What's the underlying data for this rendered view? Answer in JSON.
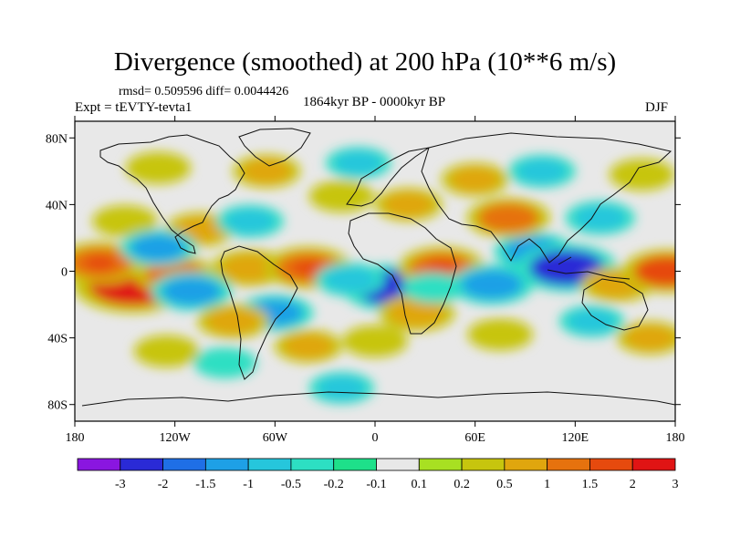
{
  "header": {
    "title": "Divergence (smoothed) at 200 hPa (10**6 m/s)",
    "stats": "rmsd= 0.509596 diff= 0.0044426",
    "experiment": "Expt = tEVTY-tevta1",
    "period": "1864kyr BP - 0000kyr BP",
    "season": "DJF"
  },
  "chart_data": {
    "type": "heatmap",
    "title": "Divergence (smoothed) at 200 hPa (10**6 m/s)",
    "xlabel": "",
    "ylabel": "",
    "x_range": [
      -180,
      180
    ],
    "y_range": [
      -90,
      90
    ],
    "x_ticks": [
      {
        "value": -180,
        "label": "180"
      },
      {
        "value": -120,
        "label": "120W"
      },
      {
        "value": -60,
        "label": "60W"
      },
      {
        "value": 0,
        "label": "0"
      },
      {
        "value": 60,
        "label": "60E"
      },
      {
        "value": 120,
        "label": "120E"
      },
      {
        "value": 180,
        "label": "180"
      }
    ],
    "y_ticks": [
      {
        "value": 80,
        "label": "80N"
      },
      {
        "value": 40,
        "label": "40N"
      },
      {
        "value": 0,
        "label": "0"
      },
      {
        "value": -40,
        "label": "40S"
      },
      {
        "value": -80,
        "label": "80S"
      }
    ],
    "colorbar": {
      "boundaries": [
        "-3",
        "-2",
        "-1.5",
        "-1",
        "-0.5",
        "-0.2",
        "-0.1",
        "0.1",
        "0.2",
        "0.5",
        "1",
        "1.5",
        "2",
        "3"
      ],
      "colors": [
        "#8a16e0",
        "#2a2ad6",
        "#1f6fe6",
        "#1ea0e6",
        "#26c6dc",
        "#2ddfc3",
        "#1ee08a",
        "#e8e8e8",
        "#a8e022",
        "#c7c50e",
        "#e0a60e",
        "#e6720e",
        "#e64a0e",
        "#e01414"
      ]
    },
    "features": [
      {
        "lon": -145,
        "lat": -8,
        "value": 3.0
      },
      {
        "lon": -165,
        "lat": 5,
        "value": 1.5
      },
      {
        "lon": -120,
        "lat": -2,
        "value": 1.2
      },
      {
        "lon": -105,
        "lat": 25,
        "value": 0.7
      },
      {
        "lon": -150,
        "lat": 30,
        "value": 0.5
      },
      {
        "lon": -130,
        "lat": 14,
        "value": -1.0
      },
      {
        "lon": -75,
        "lat": 2,
        "value": 1.0
      },
      {
        "lon": -40,
        "lat": 2,
        "value": 1.5
      },
      {
        "lon": -65,
        "lat": 60,
        "value": 0.6
      },
      {
        "lon": -130,
        "lat": 62,
        "value": 0.5
      },
      {
        "lon": -20,
        "lat": 45,
        "value": 0.5
      },
      {
        "lon": -10,
        "lat": 65,
        "value": -0.5
      },
      {
        "lon": -75,
        "lat": 30,
        "value": -0.6
      },
      {
        "lon": -110,
        "lat": -12,
        "value": -1.2
      },
      {
        "lon": -60,
        "lat": -25,
        "value": -1.0
      },
      {
        "lon": -85,
        "lat": -30,
        "value": 0.8
      },
      {
        "lon": 10,
        "lat": -10,
        "value": -2.0
      },
      {
        "lon": -15,
        "lat": -5,
        "value": -0.7
      },
      {
        "lon": 40,
        "lat": 2,
        "value": 1.5
      },
      {
        "lon": 25,
        "lat": -25,
        "value": 1.0
      },
      {
        "lon": 35,
        "lat": -10,
        "value": -0.4
      },
      {
        "lon": 70,
        "lat": -8,
        "value": -1.3
      },
      {
        "lon": 95,
        "lat": 12,
        "value": -1.1
      },
      {
        "lon": 115,
        "lat": 2,
        "value": -2.1
      },
      {
        "lon": 145,
        "lat": -8,
        "value": 0.8
      },
      {
        "lon": 175,
        "lat": 0,
        "value": 1.6
      },
      {
        "lon": 80,
        "lat": 32,
        "value": 1.3
      },
      {
        "lon": 135,
        "lat": 32,
        "value": -0.7
      },
      {
        "lon": 60,
        "lat": 55,
        "value": 0.6
      },
      {
        "lon": 100,
        "lat": 60,
        "value": -0.6
      },
      {
        "lon": 160,
        "lat": 58,
        "value": 0.5
      },
      {
        "lon": 20,
        "lat": 40,
        "value": 0.6
      },
      {
        "lon": -40,
        "lat": -45,
        "value": 0.6
      },
      {
        "lon": 0,
        "lat": -42,
        "value": 0.5
      },
      {
        "lon": 75,
        "lat": -38,
        "value": 0.5
      },
      {
        "lon": 130,
        "lat": -30,
        "value": -0.5
      },
      {
        "lon": -90,
        "lat": -55,
        "value": -0.4
      },
      {
        "lon": -125,
        "lat": -48,
        "value": 0.5
      },
      {
        "lon": 165,
        "lat": -40,
        "value": 0.6
      },
      {
        "lon": -20,
        "lat": -70,
        "value": -0.5
      }
    ]
  }
}
